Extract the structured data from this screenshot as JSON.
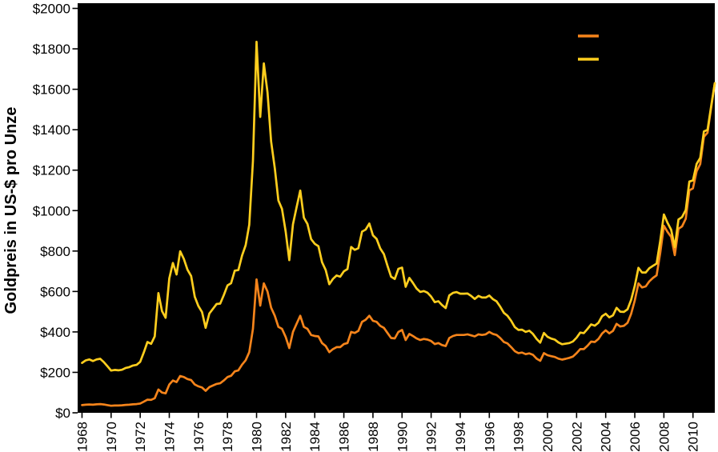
{
  "figure": {
    "plot_background": "#000000",
    "page_background": "#FFFFFF",
    "axis_color": "#000000"
  },
  "legend": {
    "visible_text_labels": false,
    "items": [
      {
        "name": "orange-series-swatch",
        "color": "#F5841B"
      },
      {
        "name": "yellow-series-swatch",
        "color": "#FFCE1E"
      }
    ]
  },
  "chart_data": {
    "type": "line",
    "title": "",
    "xlabel": "",
    "ylabel": "Goldpreis in US-$ pro Unze",
    "xlim": [
      1967.7,
      2011.5
    ],
    "ylim": [
      0,
      2000
    ],
    "grid": false,
    "legend_position": "upper-right-inside",
    "x_unit": "year",
    "x_start": 1968.0,
    "x_step": 0.25,
    "ytick_values": [
      0,
      200,
      400,
      600,
      800,
      1000,
      1200,
      1400,
      1600,
      1800,
      2000
    ],
    "ytick_labels": [
      "$0",
      "$200",
      "$400",
      "$600",
      "$800",
      "$1000",
      "$1200",
      "$1400",
      "$1600",
      "$1800",
      "$2000"
    ],
    "xtick_values": [
      1968,
      1970,
      1972,
      1974,
      1976,
      1978,
      1980,
      1982,
      1984,
      1986,
      1988,
      1990,
      1992,
      1994,
      1996,
      1998,
      2000,
      2002,
      2004,
      2006,
      2008,
      2010
    ],
    "xtick_labels": [
      "1968",
      "1970",
      "1972",
      "1974",
      "1976",
      "1978",
      "1980",
      "1982",
      "1984",
      "1986",
      "1988",
      "1990",
      "1992",
      "1994",
      "1996",
      "1998",
      "2000",
      "2002",
      "2004",
      "2006",
      "2008",
      "2010"
    ],
    "series": [
      {
        "name": "goldpreis-orange-nominal",
        "color": "#F5841B",
        "line_width": 2.7,
        "values": [
          38,
          40,
          41,
          40,
          42,
          43,
          41,
          38,
          35,
          36,
          36,
          37,
          39,
          40,
          42,
          43,
          46,
          55,
          65,
          64,
          72,
          115,
          100,
          96,
          140,
          160,
          152,
          182,
          177,
          167,
          162,
          140,
          131,
          125,
          109,
          127,
          135,
          143,
          146,
          160,
          177,
          183,
          205,
          210,
          238,
          260,
          300,
          415,
          660,
          530,
          640,
          600,
          520,
          480,
          425,
          415,
          375,
          320,
          400,
          440,
          480,
          425,
          415,
          385,
          380,
          378,
          345,
          330,
          300,
          315,
          325,
          325,
          340,
          345,
          400,
          395,
          405,
          450,
          460,
          480,
          455,
          450,
          430,
          420,
          395,
          370,
          368,
          400,
          410,
          360,
          390,
          380,
          368,
          360,
          365,
          362,
          355,
          340,
          345,
          335,
          330,
          370,
          380,
          385,
          385,
          385,
          388,
          383,
          378,
          388,
          385,
          388,
          400,
          390,
          385,
          370,
          350,
          343,
          325,
          305,
          295,
          298,
          290,
          294,
          287,
          268,
          257,
          295,
          285,
          280,
          276,
          268,
          263,
          267,
          272,
          278,
          295,
          315,
          315,
          332,
          352,
          350,
          365,
          392,
          408,
          393,
          405,
          440,
          427,
          430,
          445,
          490,
          555,
          640,
          620,
          625,
          650,
          667,
          680,
          790,
          925,
          895,
          870,
          780,
          910,
          922,
          960,
          1100,
          1110,
          1195,
          1230,
          1365,
          1385,
          1510,
          1630
        ]
      },
      {
        "name": "goldpreis-yellow-inflationsbereinigt",
        "color": "#FFCE1E",
        "line_width": 2.7,
        "values": [
          247,
          259,
          264,
          256,
          264,
          267,
          251,
          230,
          209,
          212,
          210,
          213,
          222,
          226,
          234,
          237,
          252,
          299,
          350,
          341,
          378,
          592,
          503,
          470,
          665,
          741,
          684,
          799,
          761,
          708,
          676,
          574,
          528,
          498,
          420,
          491,
          514,
          538,
          540,
          582,
          630,
          641,
          703,
          706,
          778,
          829,
          930,
          1245,
          1835,
          1463,
          1728,
          1584,
          1342,
          1210,
          1050,
          1008,
          896,
          755,
          932,
          1016,
          1099,
          965,
          934,
          859,
          836,
          824,
          745,
          706,
          636,
          662,
          679,
          673,
          700,
          711,
          820,
          806,
          814,
          896,
          906,
          936,
          878,
          860,
          813,
          785,
          727,
          673,
          662,
          712,
          718,
          623,
          667,
          642,
          615,
          598,
          602,
          594,
          575,
          547,
          552,
          533,
          518,
          581,
          593,
          597,
          589,
          589,
          590,
          578,
          563,
          578,
          570,
          570,
          580,
          562,
          551,
          525,
          494,
          480,
          455,
          424,
          410,
          411,
          400,
          406,
          390,
          365,
          347,
          395,
          376,
          367,
          362,
          348,
          339,
          342,
          345,
          353,
          372,
          397,
          394,
          415,
          437,
          431,
          445,
          478,
          490,
          472,
          482,
          519,
          500,
          499,
          512,
          559,
          627,
          717,
          694,
          694,
          715,
          727,
          738,
          849,
          981,
          940,
          905,
          819,
          956,
          968,
          1003,
          1144,
          1149,
          1231,
          1261,
          1392,
          1399,
          1518,
          1630
        ]
      }
    ]
  }
}
